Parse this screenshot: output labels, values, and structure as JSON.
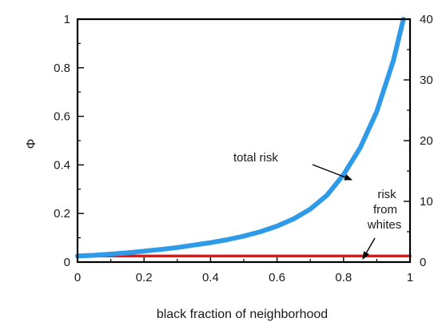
{
  "chart_data": {
    "type": "line",
    "xlabel": "black fraction of neighborhood",
    "ylabel": "Φ",
    "xlim": [
      0,
      1
    ],
    "ylim": [
      0,
      1
    ],
    "y2lim": [
      0,
      40
    ],
    "x_ticks": [
      "0",
      "0.2",
      "0.4",
      "0.6",
      "0.8",
      "1"
    ],
    "y_ticks": [
      "0",
      "0.2",
      "0.4",
      "0.6",
      "0.8",
      "1"
    ],
    "y2_ticks": [
      "0",
      "10",
      "20",
      "30",
      "40"
    ],
    "grid": false,
    "series": [
      {
        "name": "total risk",
        "color": "#2f9be8",
        "x": [
          0.0,
          0.05,
          0.1,
          0.15,
          0.2,
          0.25,
          0.3,
          0.35,
          0.4,
          0.45,
          0.5,
          0.55,
          0.6,
          0.65,
          0.7,
          0.75,
          0.8,
          0.85,
          0.9,
          0.95,
          0.98
        ],
        "y": [
          0.025,
          0.028,
          0.033,
          0.038,
          0.045,
          0.052,
          0.06,
          0.07,
          0.08,
          0.092,
          0.107,
          0.125,
          0.148,
          0.178,
          0.218,
          0.275,
          0.36,
          0.47,
          0.62,
          0.83,
          1.0
        ]
      },
      {
        "name": "risk from whites",
        "color": "#e81414",
        "x": [
          0.0,
          1.0
        ],
        "y": [
          0.025,
          0.025
        ]
      }
    ],
    "annotations": [
      {
        "text": "total risk",
        "target_x": 0.88,
        "target_y": 0.43
      },
      {
        "lines": [
          "risk",
          "from",
          "whites"
        ],
        "target_x": 0.87,
        "target_y": 0.025
      }
    ]
  }
}
